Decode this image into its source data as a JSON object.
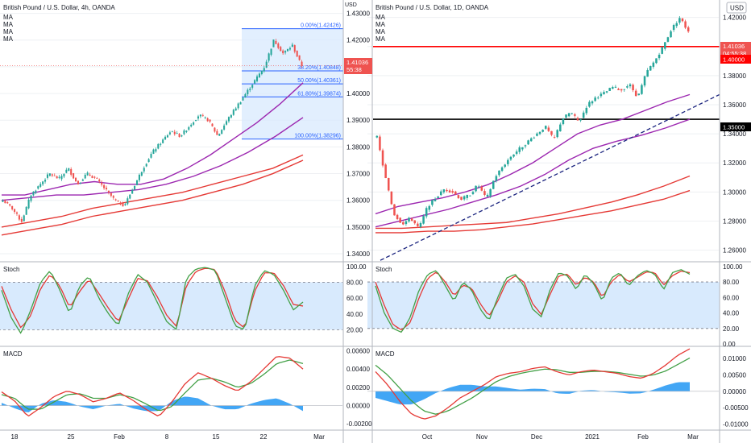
{
  "colors": {
    "up": "#26a69a",
    "down": "#ef5350",
    "ma_purple": "#9c27b0",
    "ma_red": "#e53935",
    "stoch_k": "#43a047",
    "stoch_d": "#e53935",
    "band": "#d8eafd",
    "macd_line": "#e53935",
    "signal_line": "#43a047",
    "hist": "#2196f3",
    "fib": "#2962ff",
    "hline_red": "#ff0000",
    "hline_black": "#000000",
    "trend": "#1a237e"
  },
  "left": {
    "title": "British Pound / U.S. Dollar, 4h, OANDA",
    "ma_labels": [
      "MA",
      "MA",
      "MA",
      "MA"
    ],
    "currency": "USD",
    "price_tag": {
      "value": "1.41036",
      "countdown": "55:38"
    },
    "price_axis": [
      "1.43000",
      "1.42000",
      "1.41000",
      "1.40000",
      "1.39000",
      "1.38000",
      "1.37000",
      "1.36000",
      "1.35000",
      "1.34000"
    ],
    "fib_levels": [
      {
        "label": "0.00%(1.42426)",
        "price": 1.42426
      },
      {
        "label": "38.20%(1.40848)",
        "price": 1.40848
      },
      {
        "label": "50.00%(1.40361)",
        "price": 1.40361
      },
      {
        "label": "61.80%(1.39874)",
        "price": 1.39874
      },
      {
        "label": "100.00%(1.38296)",
        "price": 1.38296
      }
    ],
    "stoch_label": "Stoch",
    "stoch_axis": [
      "100.00",
      "80.00",
      "60.00",
      "40.00",
      "20.00"
    ],
    "macd_label": "MACD",
    "macd_axis": [
      "0.00600",
      "0.00400",
      "0.00200",
      "0.00000",
      "-0.00200"
    ],
    "time_axis": [
      "18",
      "25",
      "Feb",
      "8",
      "15",
      "22",
      "Mar"
    ]
  },
  "right": {
    "title": "British Pound / U.S. Dollar, 1D, OANDA",
    "ma_labels": [
      "MA",
      "MA",
      "MA",
      "MA"
    ],
    "currency": "USD",
    "price_tag": {
      "value": "1.41036",
      "countdown": "04:55:38"
    },
    "level_tags": [
      "1.40000",
      "1.35000"
    ],
    "price_axis": [
      "1.42000",
      "1.40000",
      "1.38000",
      "1.36000",
      "1.34000",
      "1.32000",
      "1.30000",
      "1.28000",
      "1.26000"
    ],
    "stoch_label": "Stoch",
    "stoch_axis": [
      "100.00",
      "80.00",
      "60.00",
      "40.00",
      "20.00",
      "0.00"
    ],
    "macd_label": "MACD",
    "macd_axis": [
      "0.01000",
      "0.00500",
      "0.00000",
      "-0.00500",
      "-0.01000"
    ],
    "time_axis": [
      "Oct",
      "Nov",
      "Dec",
      "2021",
      "Feb",
      "Mar"
    ]
  },
  "chart_data": [
    {
      "type": "candlestick",
      "title": "British Pound / U.S. Dollar, 4h, OANDA",
      "ylabel": "USD",
      "ylim": [
        1.337,
        1.435
      ],
      "x_ticks": [
        "18",
        "25",
        "Feb",
        "8",
        "15",
        "22",
        "Mar"
      ],
      "close_path": [
        1.36,
        1.357,
        1.352,
        1.362,
        1.366,
        1.37,
        1.368,
        1.372,
        1.366,
        1.37,
        1.368,
        1.364,
        1.36,
        1.358,
        1.365,
        1.372,
        1.378,
        1.382,
        1.386,
        1.384,
        1.388,
        1.392,
        1.39,
        1.384,
        1.39,
        1.395,
        1.4,
        1.405,
        1.41,
        1.42,
        1.415,
        1.418,
        1.41
      ],
      "last_price": 1.41036,
      "fib_retracement": [
        1.42426,
        1.40848,
        1.40361,
        1.39874,
        1.38296
      ],
      "moving_averages": [
        {
          "color": "purple",
          "values": [
            1.362,
            1.362,
            1.364,
            1.366,
            1.367,
            1.366,
            1.366,
            1.368,
            1.372,
            1.377,
            1.383,
            1.389,
            1.396,
            1.404
          ]
        },
        {
          "color": "purple",
          "values": [
            1.36,
            1.361,
            1.362,
            1.362,
            1.363,
            1.364,
            1.366,
            1.369,
            1.373,
            1.378,
            1.384,
            1.391
          ]
        },
        {
          "color": "red",
          "values": [
            1.35,
            1.352,
            1.354,
            1.357,
            1.359,
            1.361,
            1.363,
            1.366,
            1.369,
            1.372,
            1.377
          ]
        },
        {
          "color": "red",
          "values": [
            1.347,
            1.349,
            1.351,
            1.354,
            1.356,
            1.358,
            1.36,
            1.363,
            1.366,
            1.37,
            1.375
          ]
        }
      ],
      "stoch": {
        "ylim": [
          0,
          105
        ],
        "band": [
          20,
          80
        ],
        "k": [
          70,
          35,
          15,
          45,
          80,
          95,
          70,
          40,
          75,
          88,
          60,
          40,
          25,
          65,
          90,
          80,
          55,
          30,
          20,
          85,
          97,
          99,
          95,
          60,
          25,
          20,
          75,
          95,
          90,
          70,
          45,
          55
        ],
        "d": [
          75,
          45,
          22,
          38,
          72,
          90,
          75,
          48,
          68,
          84,
          66,
          47,
          30,
          58,
          85,
          82,
          62,
          38,
          24,
          76,
          94,
          98,
          96,
          68,
          32,
          22,
          68,
          92,
          92,
          76,
          52,
          50
        ]
      },
      "macd": {
        "ylim": [
          -0.0026,
          0.0064
        ],
        "macd": [
          0.0015,
          0.0005,
          -0.0012,
          -0.0002,
          0.001,
          0.0016,
          0.0012,
          0.0004,
          0.0008,
          0.0014,
          0.0006,
          -0.0004,
          -0.0012,
          0.0004,
          0.0024,
          0.0036,
          0.003,
          0.0022,
          0.0016,
          0.0026,
          0.004,
          0.0054,
          0.0052,
          0.004
        ],
        "signal": [
          0.0012,
          0.0008,
          -0.0004,
          -0.0004,
          0.0004,
          0.0012,
          0.0013,
          0.0008,
          0.0008,
          0.0012,
          0.0009,
          0.0002,
          -0.0006,
          -0.0001,
          0.0014,
          0.0028,
          0.003,
          0.0026,
          0.002,
          0.0024,
          0.0034,
          0.0046,
          0.005,
          0.0046
        ]
      }
    },
    {
      "type": "candlestick",
      "title": "British Pound / U.S. Dollar, 1D, OANDA",
      "ylabel": "USD",
      "ylim": [
        1.252,
        1.432
      ],
      "x_ticks": [
        "Oct",
        "Nov",
        "Dec",
        "2021",
        "Feb",
        "Mar"
      ],
      "close_path": [
        1.338,
        1.31,
        1.285,
        1.278,
        1.282,
        1.275,
        1.29,
        1.296,
        1.302,
        1.3,
        1.295,
        1.298,
        1.305,
        1.295,
        1.31,
        1.318,
        1.325,
        1.33,
        1.335,
        1.34,
        1.345,
        1.336,
        1.35,
        1.355,
        1.348,
        1.36,
        1.365,
        1.368,
        1.372,
        1.37,
        1.374,
        1.365,
        1.382,
        1.39,
        1.4,
        1.412,
        1.42,
        1.41
      ],
      "last_price": 1.41036,
      "horizontal_lines": [
        1.4,
        1.35
      ],
      "moving_averages": [
        {
          "color": "purple",
          "values": [
            1.285,
            1.29,
            1.293,
            1.296,
            1.3,
            1.305,
            1.312,
            1.32,
            1.33,
            1.34,
            1.346,
            1.35,
            1.356,
            1.362,
            1.367
          ]
        },
        {
          "color": "purple",
          "values": [
            1.276,
            1.28,
            1.284,
            1.288,
            1.293,
            1.298,
            1.304,
            1.312,
            1.322,
            1.33,
            1.335,
            1.339,
            1.344,
            1.35
          ]
        },
        {
          "color": "red",
          "values": [
            1.275,
            1.275,
            1.276,
            1.277,
            1.278,
            1.279,
            1.282,
            1.285,
            1.289,
            1.293,
            1.298,
            1.304,
            1.311
          ]
        },
        {
          "color": "red",
          "values": [
            1.272,
            1.272,
            1.273,
            1.273,
            1.274,
            1.276,
            1.278,
            1.281,
            1.284,
            1.287,
            1.291,
            1.295,
            1.301
          ]
        }
      ],
      "trendline": [
        1.253,
        1.367
      ],
      "stoch": {
        "ylim": [
          -2,
          105
        ],
        "band": [
          20,
          80
        ],
        "k": [
          75,
          40,
          20,
          15,
          35,
          70,
          90,
          95,
          75,
          55,
          80,
          70,
          45,
          30,
          60,
          85,
          90,
          75,
          45,
          35,
          70,
          92,
          88,
          70,
          90,
          78,
          55,
          85,
          92,
          75,
          88,
          95,
          90,
          70,
          92,
          96,
          90
        ],
        "d": [
          80,
          50,
          25,
          18,
          28,
          60,
          85,
          93,
          80,
          62,
          76,
          72,
          52,
          36,
          55,
          80,
          88,
          80,
          52,
          38,
          64,
          88,
          90,
          76,
          86,
          80,
          60,
          80,
          90,
          80,
          86,
          93,
          92,
          76,
          88,
          94,
          92
        ]
      },
      "macd": {
        "ylim": [
          -0.0116,
          0.0135
        ],
        "macd": [
          0.006,
          0.002,
          -0.003,
          -0.007,
          -0.0085,
          -0.0075,
          -0.005,
          -0.002,
          0.0,
          0.002,
          0.0045,
          0.0055,
          0.006,
          0.007,
          0.0075,
          0.006,
          0.005,
          0.006,
          0.0065,
          0.006,
          0.0055,
          0.0045,
          0.004,
          0.0055,
          0.008,
          0.011,
          0.013
        ],
        "signal": [
          0.008,
          0.005,
          0.001,
          -0.003,
          -0.006,
          -0.007,
          -0.006,
          -0.004,
          -0.002,
          0.0005,
          0.003,
          0.0045,
          0.0055,
          0.0062,
          0.0068,
          0.0066,
          0.0058,
          0.0058,
          0.0061,
          0.0061,
          0.0058,
          0.0052,
          0.0046,
          0.005,
          0.0062,
          0.0082,
          0.0102
        ]
      }
    }
  ]
}
